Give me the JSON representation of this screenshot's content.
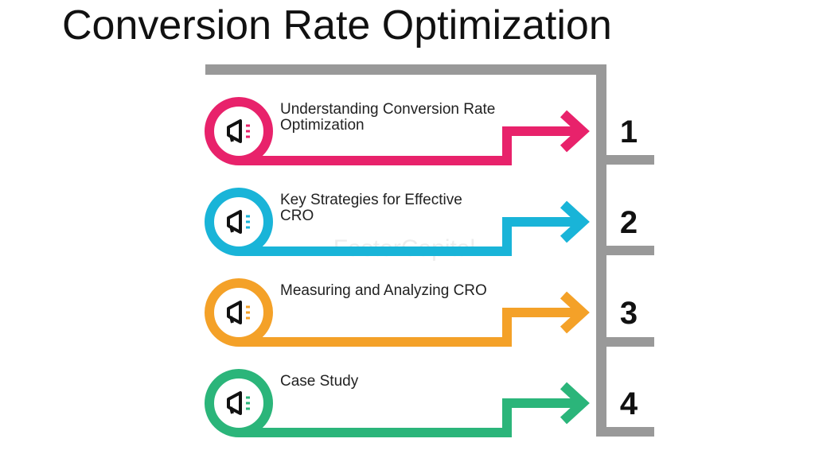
{
  "header": {
    "title": "Conversion Rate Optimization"
  },
  "watermark": "FasterCapital",
  "items": [
    {
      "label": "Understanding Conversion Rate Optimization",
      "number": 1,
      "color": "#e8226b"
    },
    {
      "label": "Key Strategies for Effective CRO",
      "number": 2,
      "color": "#19b4d8"
    },
    {
      "label": "Measuring and Analyzing CRO",
      "number": 3,
      "color": "#f4a128"
    },
    {
      "label": "Case Study",
      "number": 4,
      "color": "#2bb57a"
    }
  ]
}
